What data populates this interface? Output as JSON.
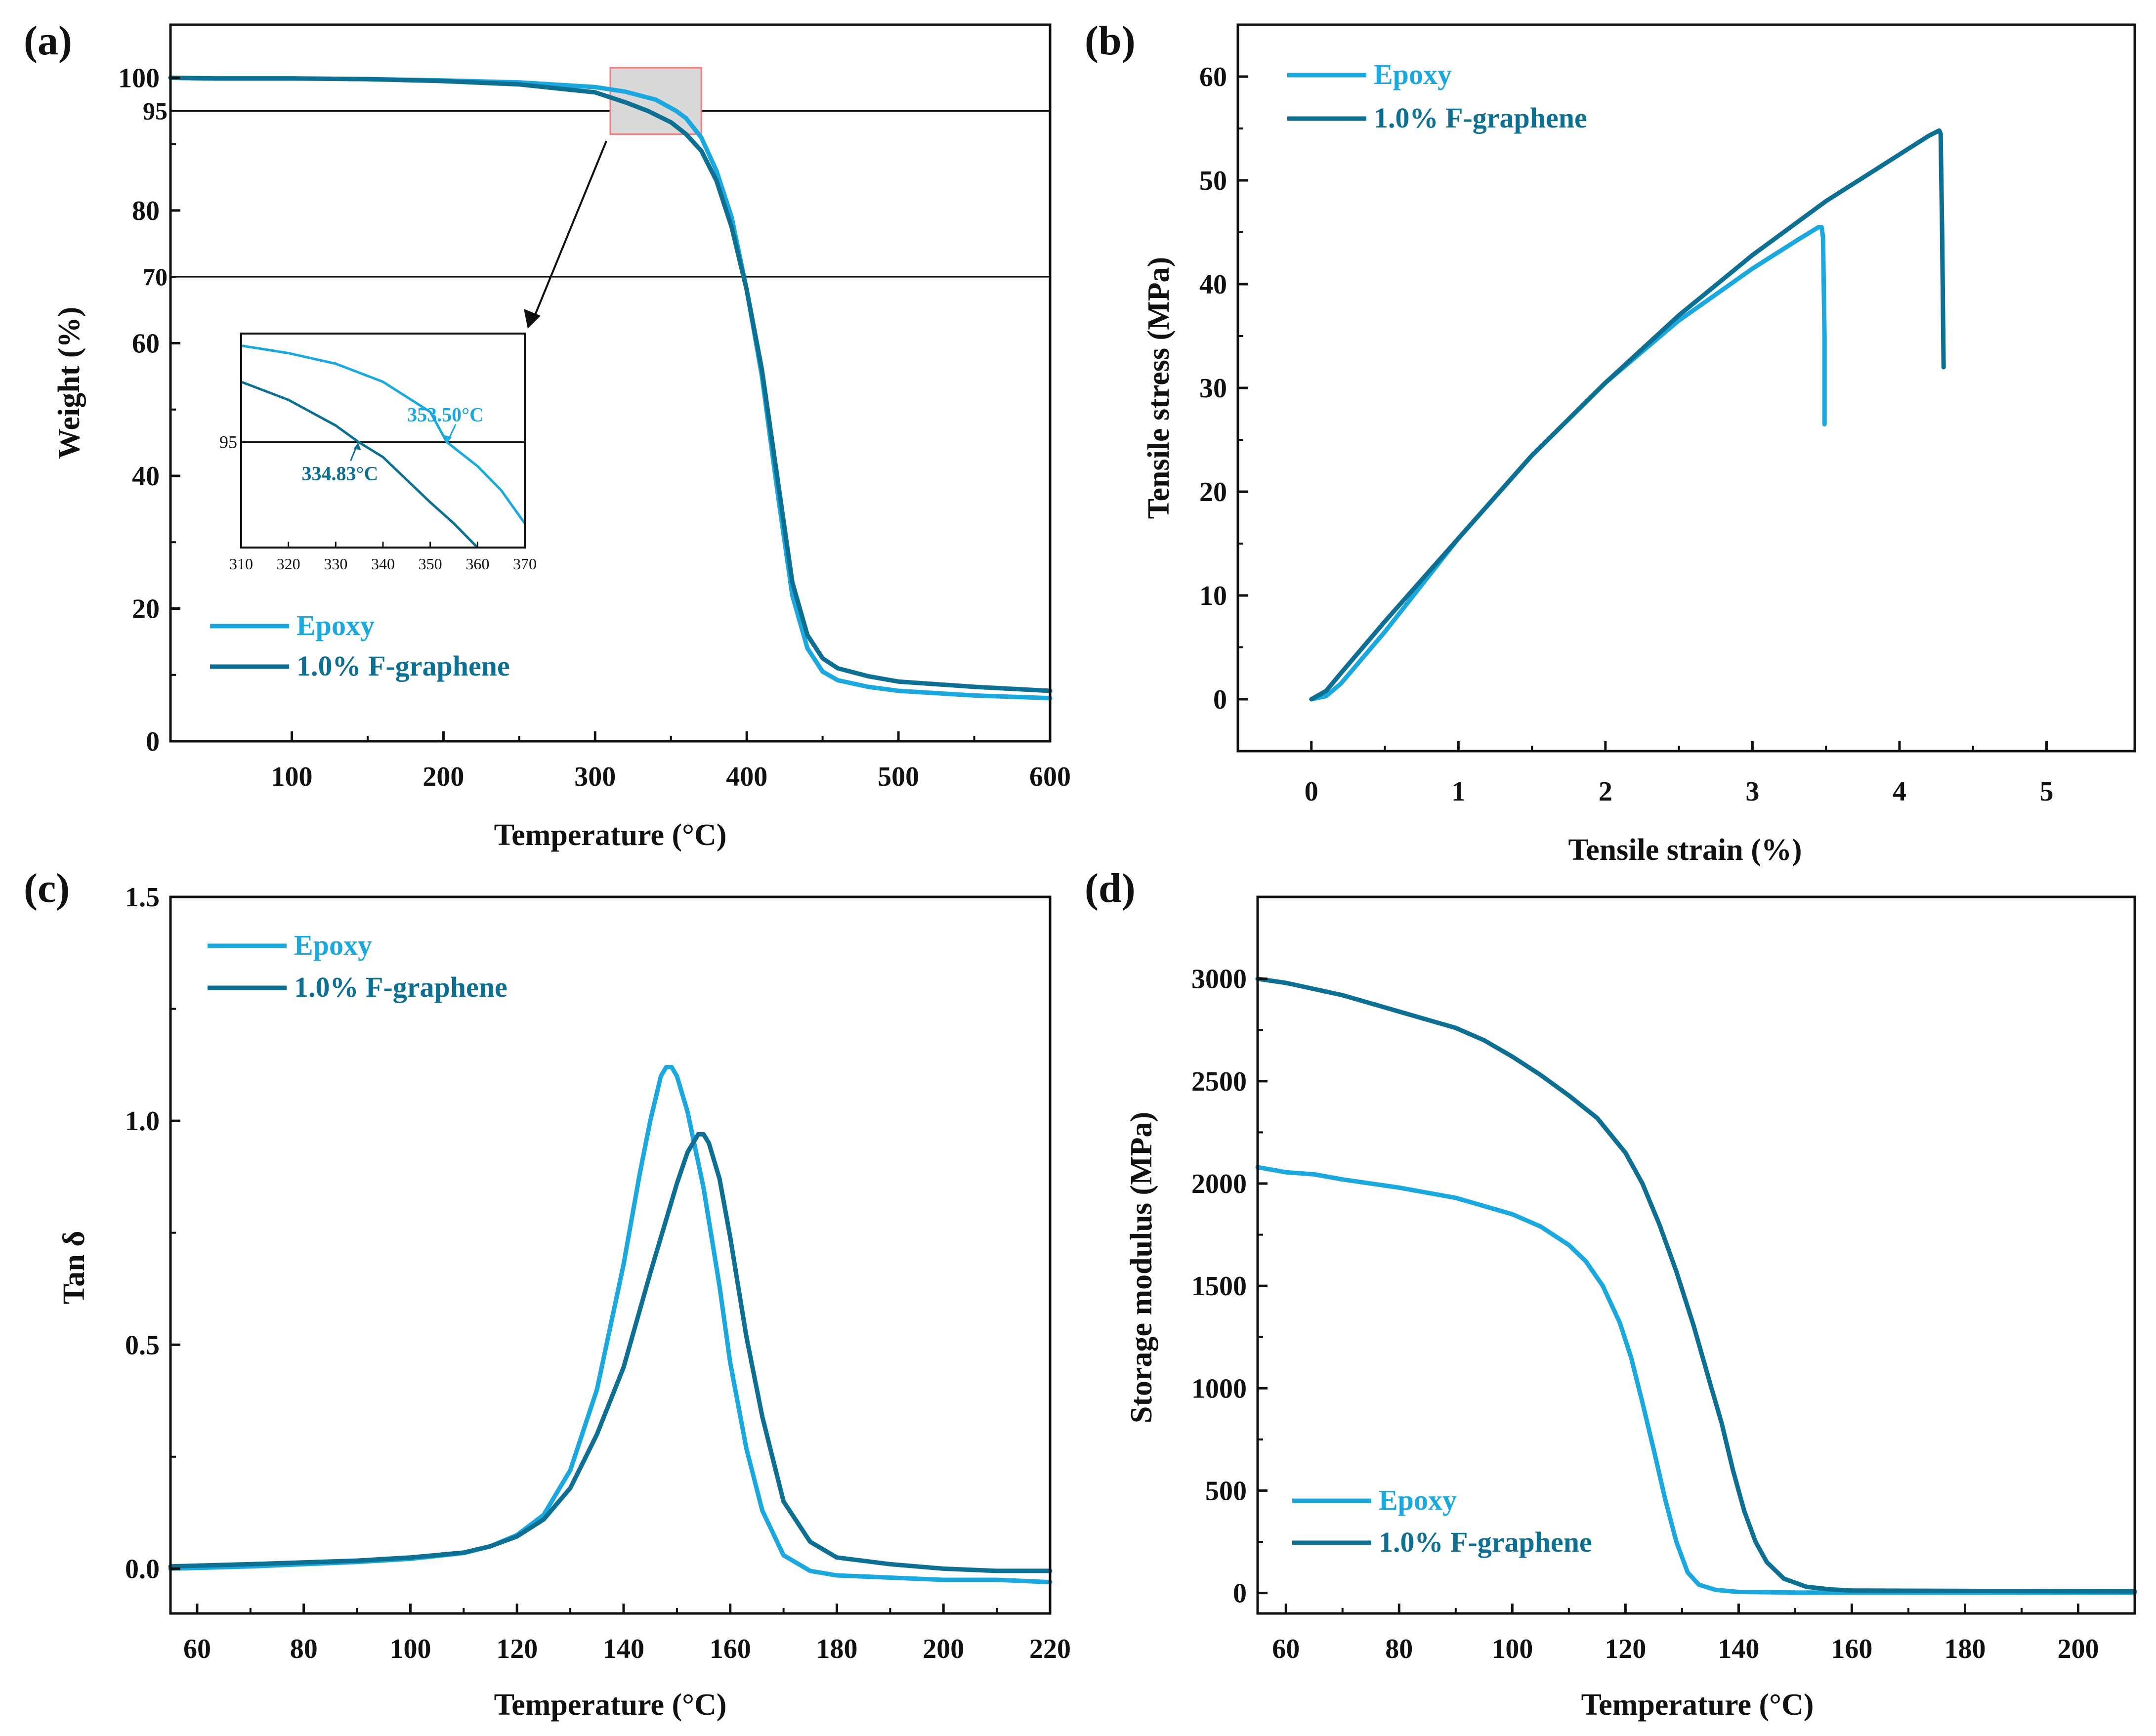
{
  "colors": {
    "epoxy": "#1aa8df",
    "fgraphene": "#0d6f91",
    "axis": "#111111",
    "zoom_fill": "#d9d9d9",
    "zoom_stroke": "#f08080"
  },
  "chart_data": [
    {
      "id": "a",
      "panel_label": "(a)",
      "type": "line",
      "xlabel": "Temperature (°C)",
      "ylabel": "Weight (%)",
      "xlim": [
        20,
        600
      ],
      "ylim": [
        0,
        108
      ],
      "xticks": [
        100,
        200,
        300,
        400,
        500,
        600
      ],
      "yticks": [
        0,
        20,
        40,
        60,
        80,
        100
      ],
      "reference_lines": [
        {
          "y": 95,
          "label": "95"
        },
        {
          "y": 70,
          "label": "70"
        }
      ],
      "zoom_box": {
        "x": [
          310,
          370
        ],
        "y": [
          91.5,
          101.5
        ]
      },
      "legend": [
        "Epoxy",
        "1.0% F-graphene"
      ],
      "series": [
        {
          "name": "Epoxy",
          "color": "#1aa8df",
          "x": [
            20,
            50,
            100,
            150,
            200,
            250,
            300,
            320,
            340,
            353.5,
            360,
            370,
            380,
            390,
            400,
            410,
            420,
            430,
            440,
            450,
            460,
            480,
            500,
            550,
            600
          ],
          "y": [
            100,
            99.9,
            99.9,
            99.8,
            99.6,
            99.3,
            98.6,
            97.9,
            96.7,
            95.0,
            93.9,
            91.0,
            86.0,
            79.0,
            68.0,
            55.0,
            38.0,
            22.0,
            14.0,
            10.5,
            9.2,
            8.2,
            7.6,
            6.9,
            6.5
          ]
        },
        {
          "name": "1.0% F-graphene",
          "color": "#0d6f91",
          "x": [
            20,
            50,
            100,
            150,
            200,
            250,
            300,
            320,
            334.83,
            350,
            360,
            370,
            380,
            390,
            400,
            410,
            420,
            430,
            440,
            450,
            460,
            480,
            500,
            550,
            600
          ],
          "y": [
            100,
            99.9,
            99.9,
            99.8,
            99.5,
            99.0,
            97.8,
            96.3,
            95.0,
            93.3,
            91.5,
            89.0,
            84.5,
            77.5,
            68.0,
            56.0,
            40.0,
            24.0,
            16.0,
            12.5,
            11.0,
            9.8,
            9.0,
            8.2,
            7.6
          ]
        }
      ],
      "inset": {
        "xlim": [
          310,
          370
        ],
        "ylim": [
          91.5,
          98.6
        ],
        "xticks": [
          310,
          320,
          330,
          340,
          350,
          360,
          370
        ],
        "ref_y": 95,
        "ref_label": "95",
        "series": [
          {
            "name": "Epoxy",
            "x": [
              310,
              320,
              330,
              340,
              350,
              353.5,
              360,
              365,
              370
            ],
            "y": [
              98.2,
              97.95,
              97.6,
              97.0,
              96.0,
              95.0,
              94.2,
              93.4,
              92.3
            ]
          },
          {
            "name": "1.0% F-graphene",
            "x": [
              310,
              320,
              330,
              334.83,
              340,
              350,
              355,
              360
            ],
            "y": [
              97.0,
              96.4,
              95.55,
              95.0,
              94.5,
              93.0,
              92.3,
              91.5
            ]
          }
        ],
        "annotations": [
          {
            "text": "353.50°C",
            "x": 353.5,
            "y": 95,
            "series": "Epoxy"
          },
          {
            "text": "334.83°C",
            "x": 334.83,
            "y": 95,
            "series": "1.0% F-graphene"
          }
        ]
      }
    },
    {
      "id": "b",
      "panel_label": "(b)",
      "type": "line",
      "xlabel": "Tensile strain (%)",
      "ylabel": "Tensile stress (MPa)",
      "xlim": [
        -0.5,
        5.6
      ],
      "ylim": [
        -5,
        65
      ],
      "xticks": [
        0,
        1,
        2,
        3,
        4,
        5
      ],
      "yticks": [
        0,
        10,
        20,
        30,
        40,
        50,
        60
      ],
      "legend": [
        "Epoxy",
        "1.0% F-graphene"
      ],
      "series": [
        {
          "name": "Epoxy",
          "color": "#1aa8df",
          "x": [
            0,
            0.1,
            0.2,
            0.5,
            1.0,
            1.5,
            2.0,
            2.5,
            3.0,
            3.3,
            3.45,
            3.47,
            3.48,
            3.49,
            3.49
          ],
          "y": [
            0,
            0.3,
            1.5,
            6.5,
            15.5,
            23.5,
            30.5,
            36.5,
            41.5,
            44.2,
            45.5,
            45.5,
            44.5,
            35.0,
            26.5
          ]
        },
        {
          "name": "1.0% F-graphene",
          "color": "#0d6f91",
          "x": [
            0,
            0.1,
            0.2,
            0.5,
            1.0,
            1.5,
            2.0,
            2.5,
            3.0,
            3.5,
            4.0,
            4.2,
            4.27,
            4.28,
            4.29,
            4.3
          ],
          "y": [
            0,
            0.8,
            2.5,
            7.5,
            15.5,
            23.5,
            30.5,
            37.0,
            42.8,
            48.0,
            52.5,
            54.3,
            54.8,
            54.5,
            45.0,
            32.0
          ]
        }
      ]
    },
    {
      "id": "c",
      "panel_label": "(c)",
      "type": "line",
      "xlabel": "Temperature (°C)",
      "ylabel": "Tan δ",
      "xlim": [
        55,
        220
      ],
      "ylim": [
        -0.1,
        1.5
      ],
      "xticks": [
        60,
        80,
        100,
        120,
        140,
        160,
        180,
        200,
        220
      ],
      "yticks": [
        0.0,
        0.5,
        1.0,
        1.5
      ],
      "ytick_labels": [
        "0.0",
        "0.5",
        "1.0",
        "1.5"
      ],
      "legend": [
        "Epoxy",
        "1.0% F-graphene"
      ],
      "series": [
        {
          "name": "Epoxy",
          "color": "#1aa8df",
          "x": [
            55,
            70,
            90,
            100,
            110,
            115,
            120,
            125,
            130,
            135,
            140,
            143,
            145,
            147,
            148,
            149,
            150,
            152,
            155,
            158,
            160,
            163,
            166,
            170,
            175,
            180,
            190,
            200,
            210,
            220
          ],
          "y": [
            0.0,
            0.005,
            0.015,
            0.022,
            0.035,
            0.05,
            0.075,
            0.12,
            0.22,
            0.4,
            0.68,
            0.88,
            1.0,
            1.1,
            1.12,
            1.12,
            1.1,
            1.02,
            0.85,
            0.63,
            0.46,
            0.27,
            0.13,
            0.03,
            -0.005,
            -0.015,
            -0.02,
            -0.025,
            -0.025,
            -0.03
          ]
        },
        {
          "name": "1.0% F-graphene",
          "color": "#0d6f91",
          "x": [
            55,
            70,
            90,
            100,
            110,
            115,
            120,
            125,
            130,
            135,
            140,
            145,
            148,
            150,
            152,
            154,
            155,
            156,
            158,
            160,
            163,
            166,
            170,
            175,
            180,
            190,
            200,
            210,
            220
          ],
          "y": [
            0.005,
            0.01,
            0.018,
            0.025,
            0.036,
            0.05,
            0.072,
            0.11,
            0.18,
            0.3,
            0.45,
            0.66,
            0.78,
            0.86,
            0.93,
            0.97,
            0.97,
            0.95,
            0.87,
            0.74,
            0.52,
            0.34,
            0.15,
            0.06,
            0.025,
            0.01,
            0.0,
            -0.005,
            -0.005
          ]
        }
      ]
    },
    {
      "id": "d",
      "panel_label": "(d)",
      "type": "line",
      "xlabel": "Temperature (°C)",
      "ylabel": "Storage modulus (MPa)",
      "xlim": [
        55,
        210
      ],
      "ylim": [
        -100,
        3400
      ],
      "xticks": [
        60,
        80,
        100,
        120,
        140,
        160,
        180,
        200
      ],
      "yticks": [
        0,
        500,
        1000,
        1500,
        2000,
        2500,
        3000
      ],
      "legend": [
        "Epoxy",
        "1.0% F-graphene"
      ],
      "legend_position": "bottom-left",
      "series": [
        {
          "name": "Epoxy",
          "color": "#1aa8df",
          "x": [
            55,
            60,
            65,
            70,
            80,
            90,
            100,
            105,
            110,
            113,
            116,
            119,
            121,
            123,
            125,
            127,
            129,
            131,
            133,
            136,
            140,
            150,
            160,
            180,
            200,
            210
          ],
          "y": [
            2080,
            2055,
            2045,
            2020,
            1980,
            1930,
            1850,
            1790,
            1700,
            1620,
            1500,
            1320,
            1150,
            930,
            700,
            460,
            250,
            100,
            40,
            15,
            5,
            2,
            2,
            2,
            2,
            2
          ]
        },
        {
          "name": "1.0% F-graphene",
          "color": "#0d6f91",
          "x": [
            55,
            60,
            65,
            70,
            75,
            80,
            85,
            90,
            95,
            100,
            105,
            110,
            115,
            120,
            123,
            126,
            129,
            132,
            135,
            137,
            139,
            141,
            143,
            145,
            148,
            152,
            156,
            160,
            180,
            210
          ],
          "y": [
            3000,
            2980,
            2950,
            2920,
            2880,
            2840,
            2800,
            2760,
            2700,
            2620,
            2530,
            2430,
            2320,
            2150,
            2000,
            1800,
            1570,
            1310,
            1020,
            830,
            600,
            400,
            250,
            150,
            70,
            30,
            18,
            12,
            10,
            8
          ]
        }
      ]
    }
  ]
}
